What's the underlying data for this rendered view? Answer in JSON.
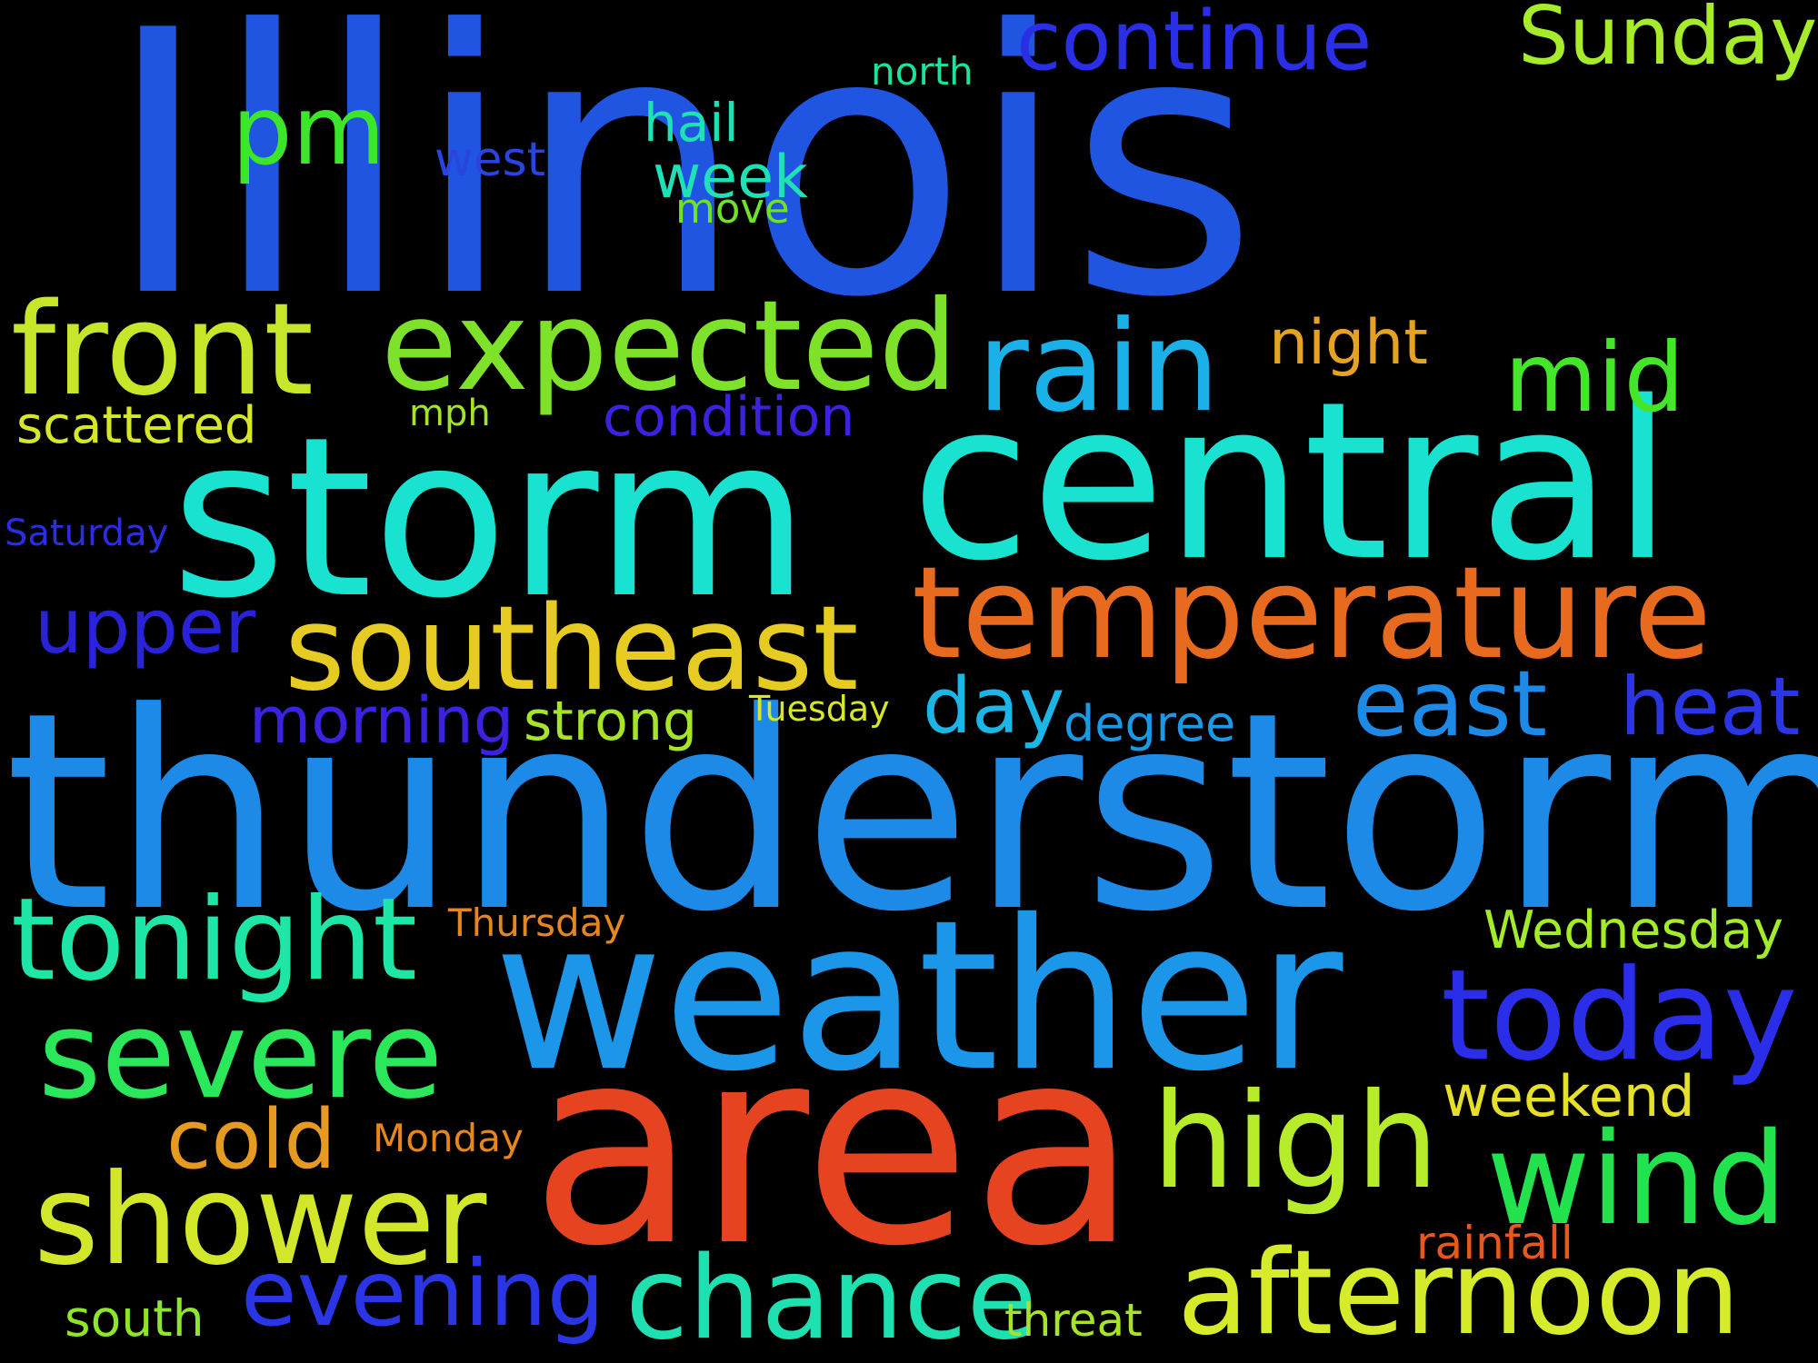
{
  "cloud": {
    "background": "#000000",
    "words": [
      {
        "text": "Illinois",
        "color": "#1f55e0"
      },
      {
        "text": "thunderstorm",
        "color": "#1c8ae6"
      },
      {
        "text": "storm",
        "color": "#19e2d0"
      },
      {
        "text": "central",
        "color": "#19e2d0"
      },
      {
        "text": "area",
        "color": "#e64420"
      },
      {
        "text": "weather",
        "color": "#1c96e8"
      },
      {
        "text": "temperature",
        "color": "#e86a1e"
      },
      {
        "text": "expected",
        "color": "#7ee22a"
      },
      {
        "text": "southeast",
        "color": "#e6cc22"
      },
      {
        "text": "front",
        "color": "#c6e62a"
      },
      {
        "text": "rain",
        "color": "#1ab0e8"
      },
      {
        "text": "high",
        "color": "#b6ec2a"
      },
      {
        "text": "shower",
        "color": "#d2e62a"
      },
      {
        "text": "afternoon",
        "color": "#d6ec2a"
      },
      {
        "text": "chance",
        "color": "#1ee0b0"
      },
      {
        "text": "today",
        "color": "#2a2ee8"
      },
      {
        "text": "wind",
        "color": "#22e24e"
      },
      {
        "text": "severe",
        "color": "#2ae85a"
      },
      {
        "text": "tonight",
        "color": "#1ee6a6"
      },
      {
        "text": "evening",
        "color": "#2a36e6"
      },
      {
        "text": "east",
        "color": "#1c8ae6"
      },
      {
        "text": "mid",
        "color": "#44e62a"
      },
      {
        "text": "pm",
        "color": "#3ce62a"
      },
      {
        "text": "continue",
        "color": "#2a2ee6"
      },
      {
        "text": "Sunday",
        "color": "#a6ec2a"
      },
      {
        "text": "cold",
        "color": "#e69a22"
      },
      {
        "text": "heat",
        "color": "#2a36e6"
      },
      {
        "text": "day",
        "color": "#1cb6e6"
      },
      {
        "text": "upper",
        "color": "#2a22d8"
      },
      {
        "text": "morning",
        "color": "#3a22e0"
      },
      {
        "text": "strong",
        "color": "#a6e42a"
      },
      {
        "text": "weekend",
        "color": "#e6e02a"
      },
      {
        "text": "Wednesday",
        "color": "#a2ec2a"
      },
      {
        "text": "night",
        "color": "#e6a222"
      },
      {
        "text": "condition",
        "color": "#3a22e0"
      },
      {
        "text": "scattered",
        "color": "#d6e62a"
      },
      {
        "text": "week",
        "color": "#1ee2b6"
      },
      {
        "text": "hail",
        "color": "#1ee2b6"
      },
      {
        "text": "degree",
        "color": "#1a9ae6"
      },
      {
        "text": "west",
        "color": "#2a44e0"
      },
      {
        "text": "south",
        "color": "#8ee62a"
      },
      {
        "text": "threat",
        "color": "#a6e42a"
      },
      {
        "text": "rainfall",
        "color": "#e6581e"
      },
      {
        "text": "Thursday",
        "color": "#e6861e"
      },
      {
        "text": "Monday",
        "color": "#e6861e"
      },
      {
        "text": "move",
        "color": "#6ee22a"
      },
      {
        "text": "north",
        "color": "#1ee29a"
      },
      {
        "text": "mph",
        "color": "#a2e42a"
      },
      {
        "text": "Saturday",
        "color": "#2a2ee0"
      },
      {
        "text": "Tuesday",
        "color": "#d6e62a"
      }
    ]
  }
}
